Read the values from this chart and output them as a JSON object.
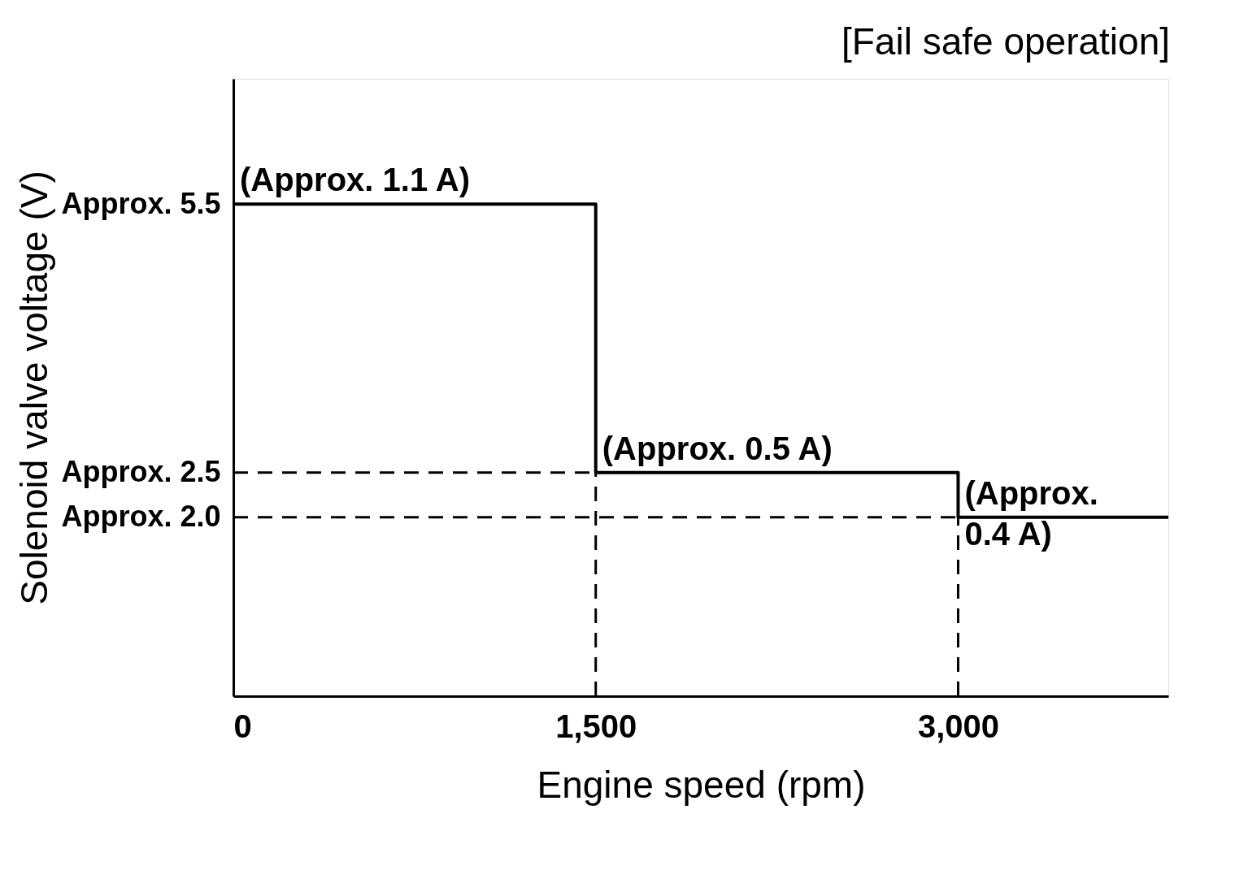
{
  "chart_data": {
    "type": "step",
    "title": "[Fail safe operation]",
    "xlabel": "Engine speed (rpm)",
    "ylabel": "Solenoid valve voltage (V)",
    "series": [
      {
        "color": "#000000",
        "x": [
          0,
          1500,
          3000,
          3870
        ],
        "values": [
          5.5,
          2.5,
          2.0,
          2.0
        ]
      }
    ],
    "xlim": [
      0,
      3870
    ],
    "xticks": [
      0,
      {
        "value": 1500,
        "label": "1,500"
      },
      {
        "value": 3000,
        "label": "3,000"
      }
    ],
    "ylim": [
      0,
      6.9
    ],
    "yticks": [
      {
        "value": 2.0,
        "label": "Approx. 2.0"
      },
      {
        "value": 2.5,
        "label": "Approx. 2.5"
      },
      {
        "value": 5.5,
        "label": "Approx. 5.5"
      }
    ],
    "ref_lines": [
      {
        "axis": "y",
        "value": 2.5,
        "line_style": "dashed",
        "color": "#000000"
      },
      {
        "axis": "y",
        "value": 2.0,
        "line_style": "dashed",
        "color": "#000000"
      },
      {
        "axis": "x",
        "value": 1500,
        "line_style": "dashed",
        "color": "#000000"
      },
      {
        "axis": "x",
        "value": 3000,
        "line_style": "dashed",
        "color": "#000000"
      }
    ],
    "annotations": [
      {
        "text": "(Approx. 1.1 A)",
        "x": 0,
        "y": 5.5
      },
      {
        "text": "(Approx. 0.5 A)",
        "x": 1500,
        "y": 2.5
      },
      {
        "text": "(Approx.\n0.4 A)",
        "x": 3000,
        "y": 2.0
      }
    ],
    "grid": false,
    "marker": "none",
    "line_style": "solid"
  }
}
